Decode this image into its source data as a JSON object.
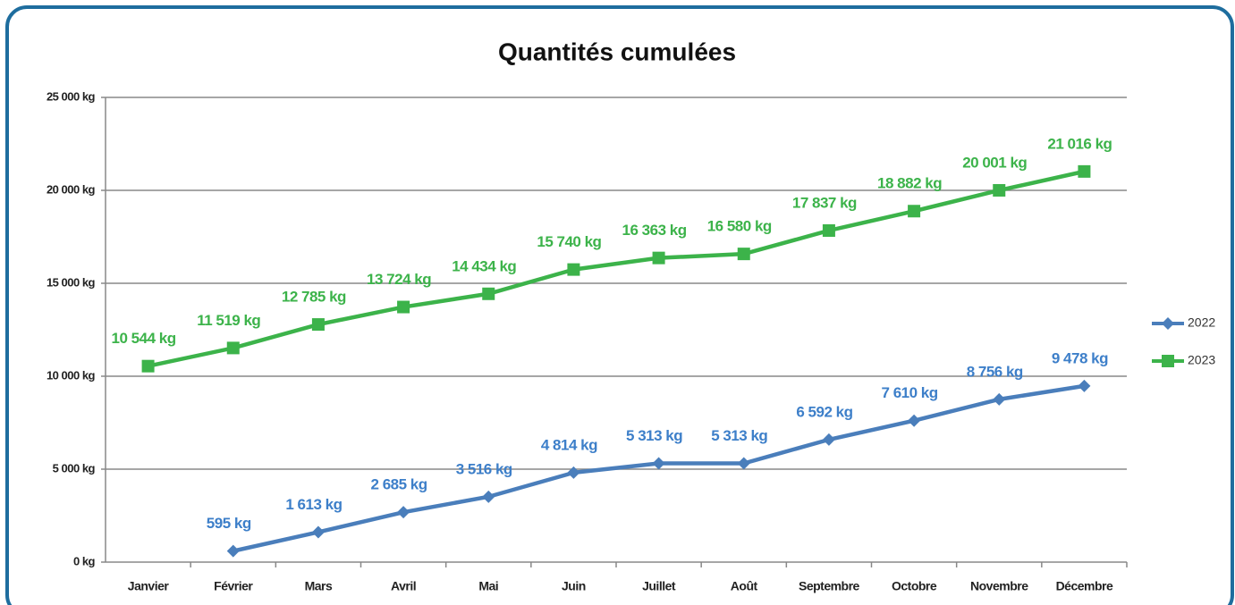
{
  "chart_data": {
    "type": "line",
    "title": "Quantités cumulées",
    "categories": [
      "Janvier",
      "Février",
      "Mars",
      "Avril",
      "Mai",
      "Juin",
      "Juillet",
      "Août",
      "Septembre",
      "Octobre",
      "Novembre",
      "Décembre"
    ],
    "series": [
      {
        "name": "2022",
        "color": "#4a7ebb",
        "marker": "diamond",
        "label_color": "#3d7fc9",
        "values": [
          null,
          595,
          1613,
          2685,
          3516,
          4814,
          5313,
          5313,
          6592,
          7610,
          8756,
          9478
        ],
        "value_labels": [
          null,
          "595 kg",
          "1 613 kg",
          "2 685 kg",
          "3 516 kg",
          "4 814 kg",
          "5 313 kg",
          "5 313 kg",
          "6 592 kg",
          "7 610 kg",
          "8 756 kg",
          "9 478 kg"
        ]
      },
      {
        "name": "2023",
        "color": "#3cb34a",
        "marker": "square",
        "label_color": "#3cb34a",
        "values": [
          10544,
          11519,
          12785,
          13724,
          14434,
          15740,
          16363,
          16580,
          17837,
          18882,
          20001,
          21016
        ],
        "value_labels": [
          "10 544 kg",
          "11 519 kg",
          "12 785 kg",
          "13 724 kg",
          "14 434 kg",
          "15 740 kg",
          "16 363 kg",
          "16 580 kg",
          "17 837 kg",
          "18 882 kg",
          "20 001 kg",
          "21 016 kg"
        ]
      }
    ],
    "ylim": [
      0,
      25000
    ],
    "yticks": [
      {
        "value": 0,
        "label": "0 kg"
      },
      {
        "value": 5000,
        "label": "5 000 kg"
      },
      {
        "value": 10000,
        "label": "10 000 kg"
      },
      {
        "value": 15000,
        "label": "15 000 kg"
      },
      {
        "value": 20000,
        "label": "20 000 kg"
      },
      {
        "value": 25000,
        "label": "25 000 kg"
      }
    ],
    "grid": true,
    "legend": "right"
  }
}
